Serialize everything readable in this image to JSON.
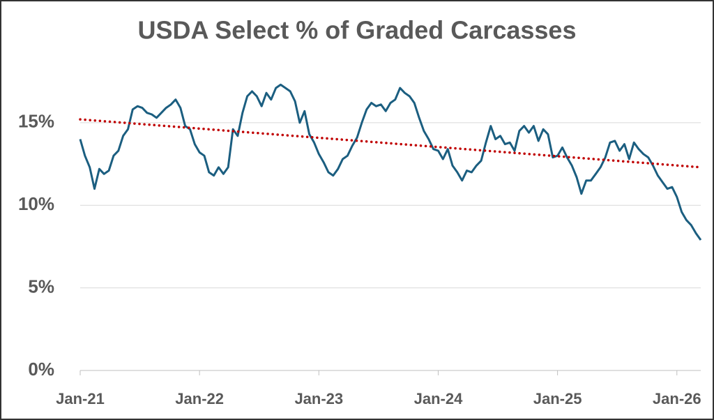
{
  "chart_data": {
    "type": "line",
    "title": "USDA Select % of Graded Carcasses",
    "x": [
      2021,
      2021.04,
      2021.08,
      2021.12,
      2021.16,
      2021.2,
      2021.24,
      2021.28,
      2021.32,
      2021.36,
      2021.4,
      2021.44,
      2021.48,
      2021.52,
      2021.56,
      2021.6,
      2021.64,
      2021.68,
      2021.72,
      2021.76,
      2021.8,
      2021.84,
      2021.88,
      2021.92,
      2021.96,
      2022,
      2022.04,
      2022.08,
      2022.12,
      2022.16,
      2022.2,
      2022.24,
      2022.28,
      2022.32,
      2022.36,
      2022.4,
      2022.44,
      2022.48,
      2022.52,
      2022.56,
      2022.6,
      2022.64,
      2022.68,
      2022.72,
      2022.76,
      2022.8,
      2022.84,
      2022.88,
      2022.92,
      2022.96,
      2023,
      2023.04,
      2023.08,
      2023.12,
      2023.16,
      2023.2,
      2023.24,
      2023.28,
      2023.32,
      2023.36,
      2023.4,
      2023.44,
      2023.48,
      2023.52,
      2023.56,
      2023.6,
      2023.64,
      2023.68,
      2023.72,
      2023.76,
      2023.8,
      2023.84,
      2023.88,
      2023.92,
      2023.96,
      2024,
      2024.04,
      2024.08,
      2024.12,
      2024.16,
      2024.2,
      2024.24,
      2024.28,
      2024.32,
      2024.36,
      2024.4,
      2024.44,
      2024.48,
      2024.52,
      2024.56,
      2024.6,
      2024.64,
      2024.68,
      2024.72,
      2024.76,
      2024.8,
      2024.84,
      2024.88,
      2024.92,
      2024.96,
      2025,
      2025.04,
      2025.08,
      2025.12,
      2025.16,
      2025.2,
      2025.24,
      2025.28,
      2025.32,
      2025.36,
      2025.4,
      2025.44,
      2025.48,
      2025.52,
      2025.56,
      2025.6,
      2025.64,
      2025.68,
      2025.72,
      2025.76,
      2025.8,
      2025.84,
      2025.88,
      2025.92,
      2025.96,
      2026,
      2026.04,
      2026.08,
      2026.12,
      2026.16,
      2026.2
    ],
    "series": [
      {
        "color": "#1b5e80",
        "values": [
          14.0,
          13.0,
          12.3,
          11.0,
          12.2,
          11.9,
          12.1,
          13.0,
          13.3,
          14.2,
          14.6,
          15.8,
          16.0,
          15.9,
          15.6,
          15.5,
          15.3,
          15.6,
          15.9,
          16.1,
          16.4,
          15.9,
          14.8,
          14.6,
          13.7,
          13.2,
          13.0,
          12.0,
          11.8,
          12.3,
          11.9,
          12.3,
          14.6,
          14.2,
          15.6,
          16.6,
          16.9,
          16.6,
          16.0,
          16.8,
          16.4,
          17.1,
          17.3,
          17.1,
          16.9,
          16.3,
          15.0,
          15.7,
          14.3,
          13.8,
          13.1,
          12.6,
          12.0,
          11.8,
          12.2,
          12.8,
          13.0,
          13.6,
          14.1,
          15.0,
          15.8,
          16.2,
          16.0,
          16.1,
          15.7,
          16.2,
          16.4,
          17.1,
          16.8,
          16.6,
          16.2,
          15.3,
          14.5,
          14.0,
          13.4,
          13.3,
          12.8,
          13.4,
          12.4,
          12.0,
          11.5,
          12.1,
          12.0,
          12.4,
          12.7,
          13.8,
          14.8,
          14.0,
          14.2,
          13.7,
          13.8,
          13.3,
          14.5,
          14.8,
          14.4,
          14.8,
          13.9,
          14.6,
          14.3,
          12.9,
          13.0,
          13.5,
          12.9,
          12.4,
          11.7,
          10.7,
          11.5,
          11.5,
          11.9,
          12.3,
          12.9,
          13.8,
          13.9,
          13.3,
          13.7,
          12.8,
          13.8,
          13.4,
          13.1,
          12.9,
          12.4,
          11.8,
          11.4,
          11.0,
          11.1,
          10.5,
          9.6,
          9.1,
          8.8,
          8.3,
          7.9
        ]
      }
    ],
    "trendline": {
      "x": [
        2021,
        2026.2
      ],
      "values": [
        15.2,
        12.3
      ],
      "color": "#c00000"
    },
    "xlim": [
      2021,
      2026.2
    ],
    "xticks": [
      {
        "value": 2021,
        "label": "Jan-21"
      },
      {
        "value": 2022,
        "label": "Jan-22"
      },
      {
        "value": 2023,
        "label": "Jan-23"
      },
      {
        "value": 2024,
        "label": "Jan-24"
      },
      {
        "value": 2025,
        "label": "Jan-25"
      },
      {
        "value": 2026,
        "label": "Jan-26"
      }
    ],
    "ylim": [
      0,
      18.5
    ],
    "yticks": [
      {
        "value": 0,
        "label": "0%"
      },
      {
        "value": 5,
        "label": "5%"
      },
      {
        "value": 10,
        "label": "10%"
      },
      {
        "value": 15,
        "label": "15%"
      }
    ],
    "grid": true
  }
}
